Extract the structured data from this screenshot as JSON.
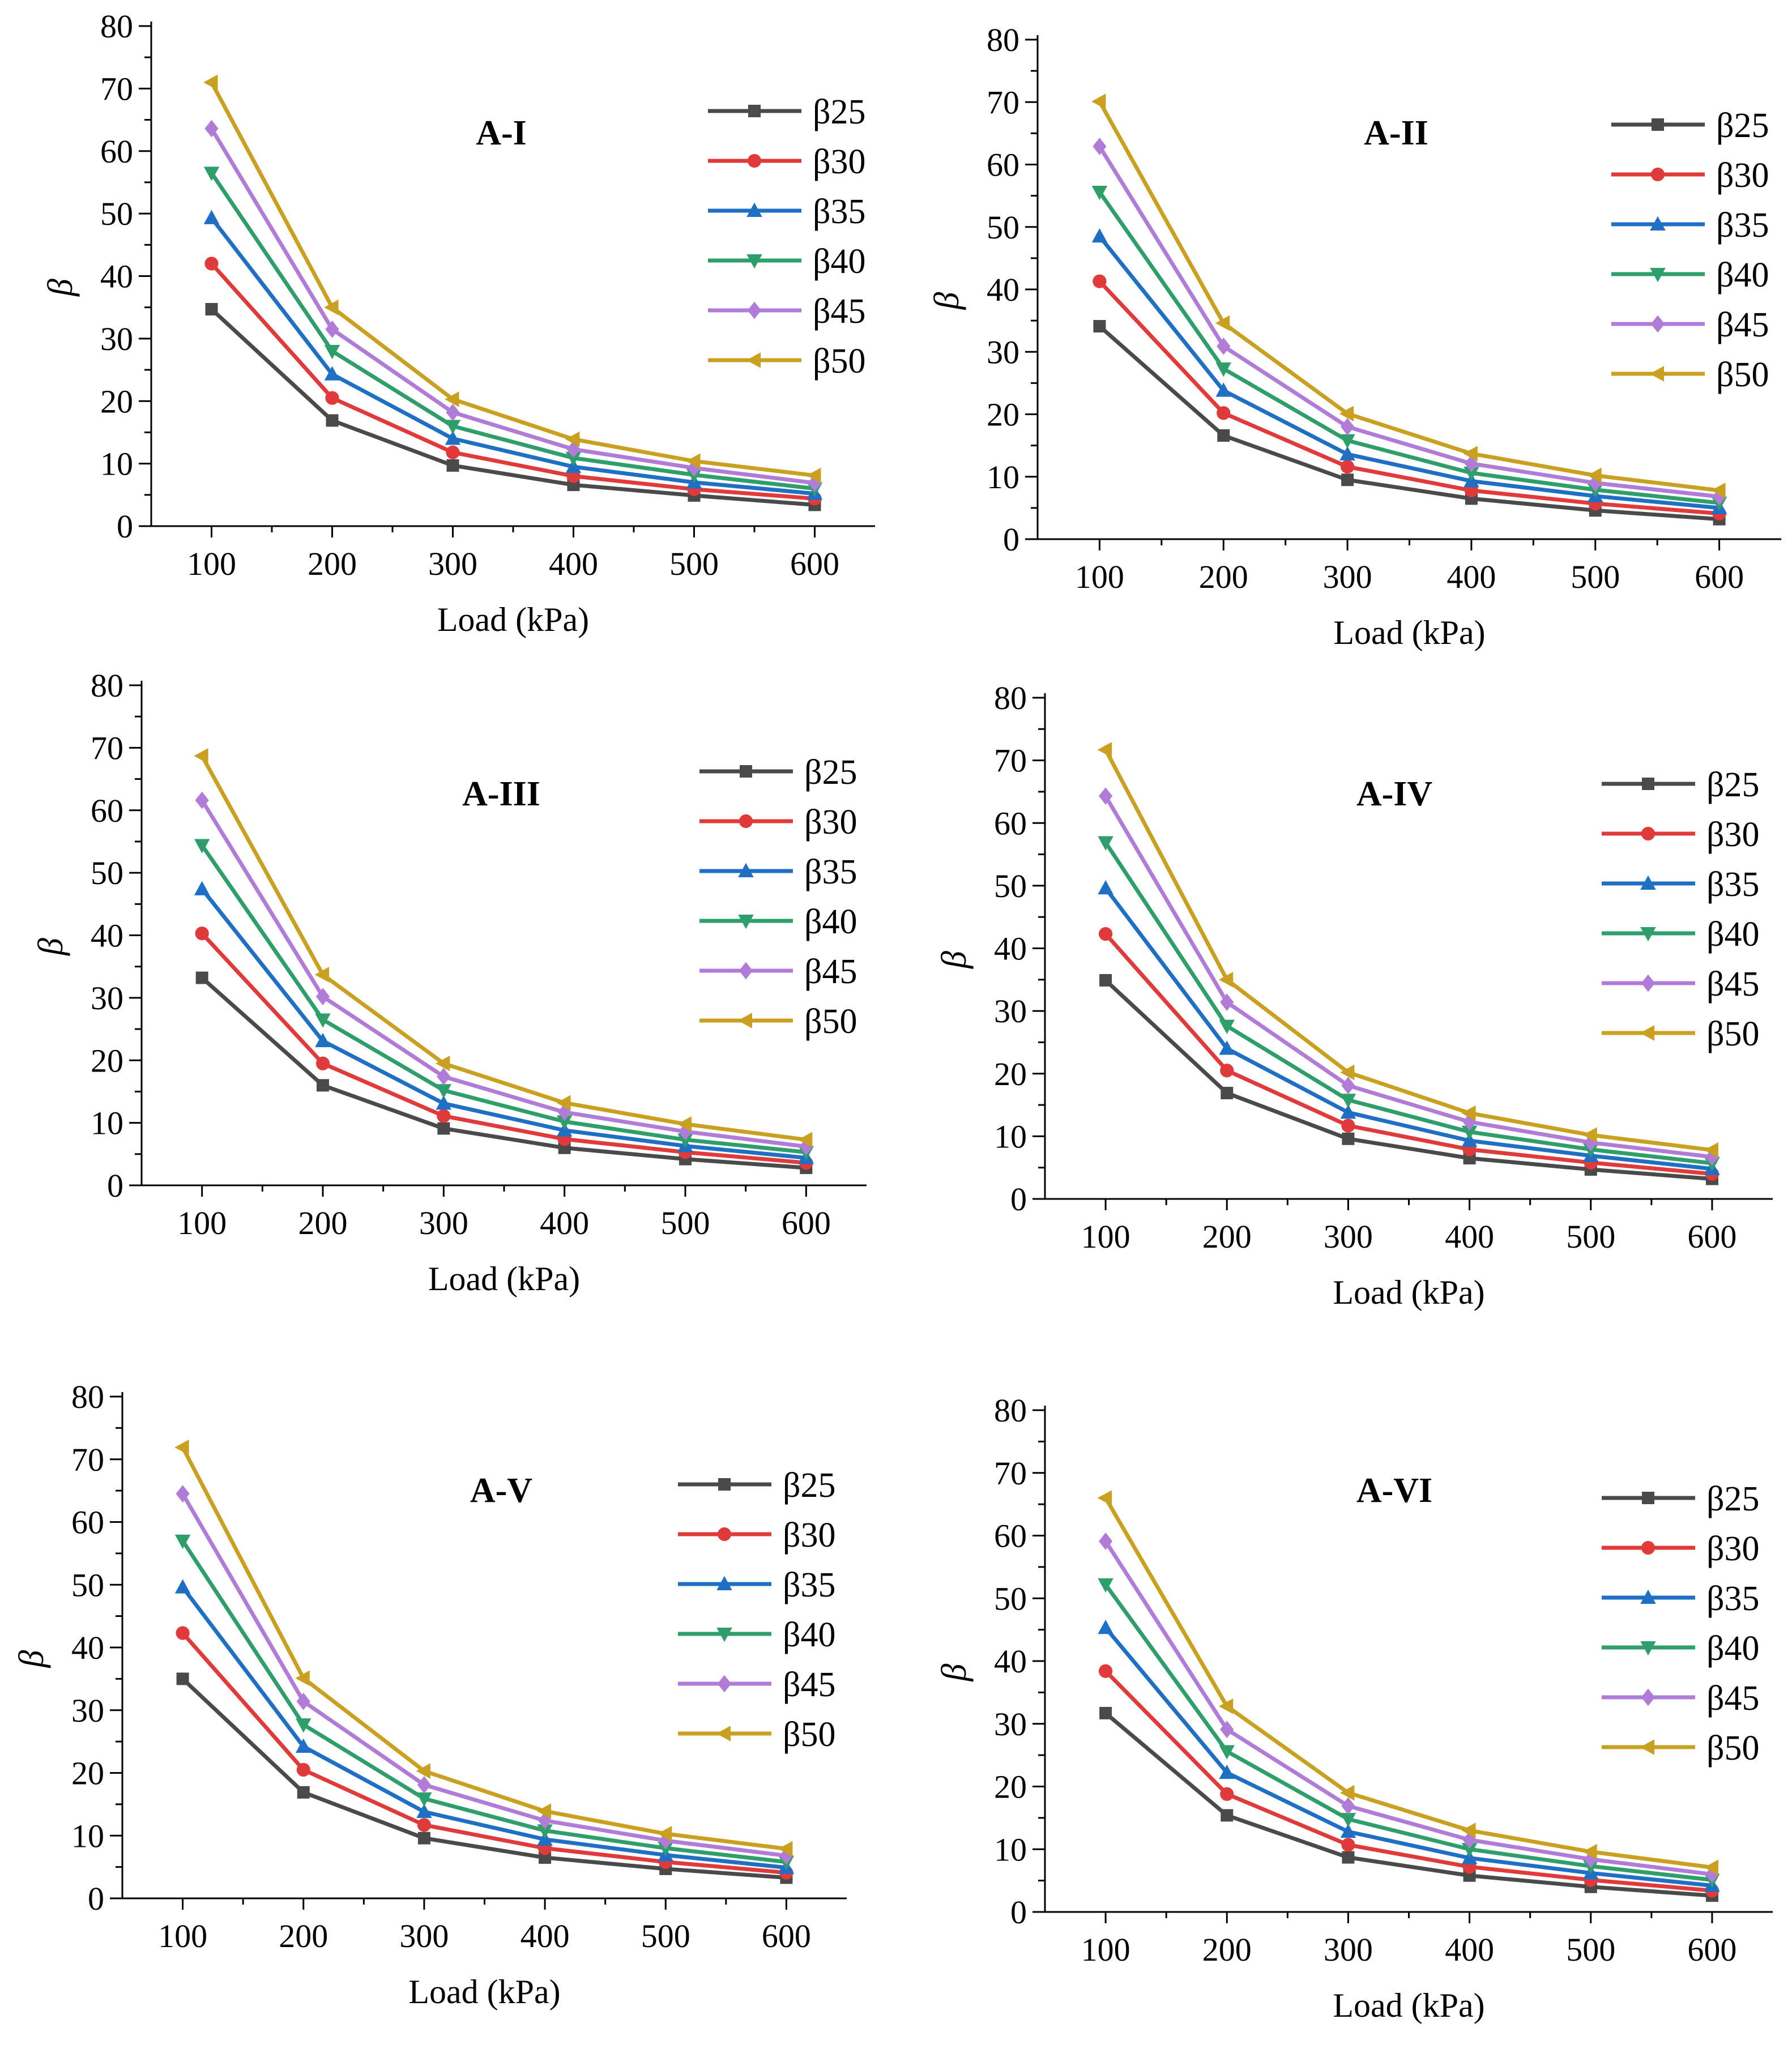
{
  "colors": {
    "axis": "#000000",
    "series": [
      "#4a4a4a",
      "#e03a3a",
      "#1f6fc5",
      "#2e9e6a",
      "#b07cd8",
      "#c9a020"
    ]
  },
  "markers": [
    "square",
    "circle",
    "triangle-up",
    "triangle-down",
    "diamond",
    "triangle-left"
  ],
  "chart_data": [
    {
      "type": "line",
      "title": "A-I",
      "xlabel": "Load (kPa)",
      "ylabel": "β",
      "x": [
        100,
        200,
        300,
        400,
        500,
        600
      ],
      "xlim": [
        50,
        650
      ],
      "ylim": [
        0,
        80
      ],
      "yticks": [
        0,
        10,
        20,
        30,
        40,
        50,
        60,
        70,
        80
      ],
      "series": [
        {
          "name": "β25",
          "values": [
            34.7,
            16.9,
            9.7,
            6.6,
            4.9,
            3.4
          ]
        },
        {
          "name": "β30",
          "values": [
            42.0,
            20.5,
            11.8,
            8.0,
            5.9,
            4.4
          ]
        },
        {
          "name": "β35",
          "values": [
            49.3,
            24.3,
            14.0,
            9.5,
            7.0,
            5.2
          ]
        },
        {
          "name": "β40",
          "values": [
            56.5,
            28.0,
            16.0,
            10.9,
            8.2,
            6.0
          ]
        },
        {
          "name": "β45",
          "values": [
            63.6,
            31.5,
            18.2,
            12.3,
            9.3,
            6.9
          ]
        },
        {
          "name": "β50",
          "values": [
            71.0,
            35.0,
            20.3,
            13.9,
            10.4,
            8.1
          ]
        }
      ]
    },
    {
      "type": "line",
      "title": "A-II",
      "xlabel": "Load (kPa)",
      "ylabel": "β",
      "x": [
        100,
        200,
        300,
        400,
        500,
        600
      ],
      "xlim": [
        50,
        650
      ],
      "ylim": [
        0,
        80
      ],
      "yticks": [
        0,
        10,
        20,
        30,
        40,
        50,
        60,
        70,
        80
      ],
      "series": [
        {
          "name": "β25",
          "values": [
            34.1,
            16.6,
            9.5,
            6.5,
            4.6,
            3.2
          ]
        },
        {
          "name": "β30",
          "values": [
            41.3,
            20.2,
            11.6,
            7.8,
            5.7,
            4.1
          ]
        },
        {
          "name": "β35",
          "values": [
            48.5,
            23.8,
            13.6,
            9.3,
            6.9,
            5.0
          ]
        },
        {
          "name": "β40",
          "values": [
            55.6,
            27.3,
            15.8,
            10.6,
            7.9,
            5.8
          ]
        },
        {
          "name": "β45",
          "values": [
            62.9,
            30.9,
            18.0,
            12.1,
            9.0,
            6.8
          ]
        },
        {
          "name": "β50",
          "values": [
            70.1,
            34.6,
            20.1,
            13.7,
            10.2,
            7.8
          ]
        }
      ]
    },
    {
      "type": "line",
      "title": "A-III",
      "xlabel": "Load (kPa)",
      "ylabel": "β",
      "x": [
        100,
        200,
        300,
        400,
        500,
        600
      ],
      "xlim": [
        50,
        650
      ],
      "ylim": [
        0,
        80
      ],
      "yticks": [
        0,
        10,
        20,
        30,
        40,
        50,
        60,
        70,
        80
      ],
      "series": [
        {
          "name": "β25",
          "values": [
            33.2,
            16.0,
            9.1,
            6.0,
            4.2,
            2.8
          ]
        },
        {
          "name": "β30",
          "values": [
            40.3,
            19.5,
            11.1,
            7.4,
            5.3,
            3.6
          ]
        },
        {
          "name": "β35",
          "values": [
            47.4,
            23.1,
            13.1,
            8.8,
            6.3,
            4.4
          ]
        },
        {
          "name": "β40",
          "values": [
            54.4,
            26.5,
            15.2,
            10.2,
            7.3,
            5.3
          ]
        },
        {
          "name": "β45",
          "values": [
            61.6,
            30.2,
            17.4,
            11.7,
            8.6,
            6.2
          ]
        },
        {
          "name": "β50",
          "values": [
            68.7,
            33.7,
            19.5,
            13.2,
            9.8,
            7.3
          ]
        }
      ]
    },
    {
      "type": "line",
      "title": "A-IV",
      "xlabel": "Load (kPa)",
      "ylabel": "β",
      "x": [
        100,
        200,
        300,
        400,
        500,
        600
      ],
      "xlim": [
        50,
        650
      ],
      "ylim": [
        0,
        80
      ],
      "yticks": [
        0,
        10,
        20,
        30,
        40,
        50,
        60,
        70,
        80
      ],
      "series": [
        {
          "name": "β25",
          "values": [
            34.9,
            16.9,
            9.6,
            6.5,
            4.7,
            3.2
          ]
        },
        {
          "name": "β30",
          "values": [
            42.3,
            20.5,
            11.7,
            7.9,
            5.8,
            4.0
          ]
        },
        {
          "name": "β35",
          "values": [
            49.6,
            24.0,
            13.8,
            9.3,
            6.9,
            4.8
          ]
        },
        {
          "name": "β40",
          "values": [
            56.9,
            27.6,
            15.8,
            10.7,
            7.9,
            5.7
          ]
        },
        {
          "name": "β45",
          "values": [
            64.3,
            31.4,
            18.1,
            12.3,
            9.0,
            6.7
          ]
        },
        {
          "name": "β50",
          "values": [
            71.7,
            35.0,
            20.2,
            13.7,
            10.2,
            7.8
          ]
        }
      ]
    },
    {
      "type": "line",
      "title": "A-V",
      "xlabel": "Load (kPa)",
      "ylabel": "β",
      "x": [
        100,
        200,
        300,
        400,
        500,
        600
      ],
      "xlim": [
        50,
        650
      ],
      "ylim": [
        0,
        80
      ],
      "yticks": [
        0,
        10,
        20,
        30,
        40,
        50,
        60,
        70,
        80
      ],
      "series": [
        {
          "name": "β25",
          "values": [
            35.0,
            16.9,
            9.6,
            6.5,
            4.7,
            3.3
          ]
        },
        {
          "name": "β30",
          "values": [
            42.3,
            20.5,
            11.7,
            8.0,
            5.8,
            4.1
          ]
        },
        {
          "name": "β35",
          "values": [
            49.6,
            24.2,
            13.8,
            9.4,
            6.9,
            4.9
          ]
        },
        {
          "name": "β40",
          "values": [
            57.0,
            27.7,
            15.9,
            10.8,
            8.0,
            5.8
          ]
        },
        {
          "name": "β45",
          "values": [
            64.5,
            31.4,
            18.1,
            12.4,
            9.2,
            6.8
          ]
        },
        {
          "name": "β50",
          "values": [
            71.9,
            35.1,
            20.3,
            13.9,
            10.3,
            7.9
          ]
        }
      ]
    },
    {
      "type": "line",
      "title": "A-VI",
      "xlabel": "Load (kPa)",
      "ylabel": "β",
      "x": [
        100,
        200,
        300,
        400,
        500,
        600
      ],
      "xlim": [
        50,
        650
      ],
      "ylim": [
        0,
        80
      ],
      "yticks": [
        0,
        10,
        20,
        30,
        40,
        50,
        60,
        70,
        80
      ],
      "series": [
        {
          "name": "β25",
          "values": [
            31.7,
            15.4,
            8.7,
            5.8,
            4.0,
            2.6
          ]
        },
        {
          "name": "β30",
          "values": [
            38.4,
            18.8,
            10.7,
            7.2,
            5.1,
            3.4
          ]
        },
        {
          "name": "β35",
          "values": [
            45.3,
            22.2,
            12.8,
            8.6,
            6.2,
            4.2
          ]
        },
        {
          "name": "β40",
          "values": [
            52.2,
            25.6,
            14.8,
            10.0,
            7.3,
            5.1
          ]
        },
        {
          "name": "β45",
          "values": [
            59.1,
            29.1,
            16.9,
            11.5,
            8.4,
            6.0
          ]
        },
        {
          "name": "β50",
          "values": [
            66.0,
            32.8,
            19.0,
            13.0,
            9.6,
            7.1
          ]
        }
      ]
    }
  ]
}
